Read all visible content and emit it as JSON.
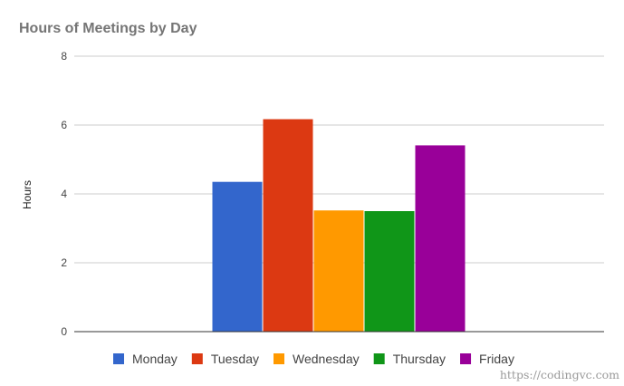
{
  "chart_data": {
    "type": "bar",
    "title": "Hours of Meetings by Day",
    "xlabel": "",
    "ylabel": "Hours",
    "ylim": [
      0,
      8
    ],
    "yticks": [
      0,
      2,
      4,
      6,
      8
    ],
    "grid": true,
    "legend_position": "bottom",
    "series": [
      {
        "name": "Monday",
        "values": [
          4.35
        ],
        "color": "#3366cc"
      },
      {
        "name": "Tuesday",
        "values": [
          6.17
        ],
        "color": "#dc3912"
      },
      {
        "name": "Wednesday",
        "values": [
          3.52
        ],
        "color": "#ff9900"
      },
      {
        "name": "Thursday",
        "values": [
          3.5
        ],
        "color": "#109618"
      },
      {
        "name": "Friday",
        "values": [
          5.41
        ],
        "color": "#990099"
      }
    ]
  },
  "watermark": "https://codingvc.com"
}
